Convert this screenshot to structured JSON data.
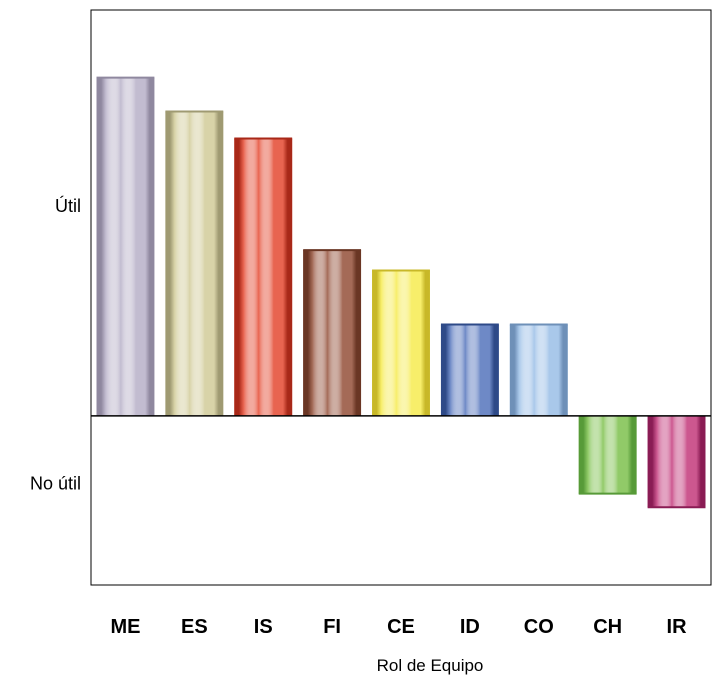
{
  "chart_data": {
    "type": "bar",
    "xlabel": "Rol de Equipo",
    "ylabel": "",
    "y_tick_labels": [
      {
        "value": 6.2,
        "label": "Útil"
      },
      {
        "value": -2.0,
        "label": "No útil"
      }
    ],
    "ylim": [
      -5.0,
      12.0
    ],
    "grid": false,
    "categories": [
      "ME",
      "ES",
      "IS",
      "FI",
      "CE",
      "ID",
      "CO",
      "CH",
      "IR"
    ],
    "values": [
      10.0,
      9.0,
      8.2,
      4.9,
      4.3,
      2.7,
      2.7,
      -2.3,
      -2.7
    ],
    "colors": [
      "#c2bcd0",
      "#d8d3a8",
      "#e86450",
      "#a46a57",
      "#f7ee6a",
      "#6e89c6",
      "#a9c8ea",
      "#91ca68",
      "#cc578f"
    ],
    "edge_colors": [
      "#8f889f",
      "#9f9a72",
      "#a82818",
      "#6a3624",
      "#c8b828",
      "#2e4a88",
      "#6e90b8",
      "#579a38",
      "#8a1c54"
    ]
  }
}
